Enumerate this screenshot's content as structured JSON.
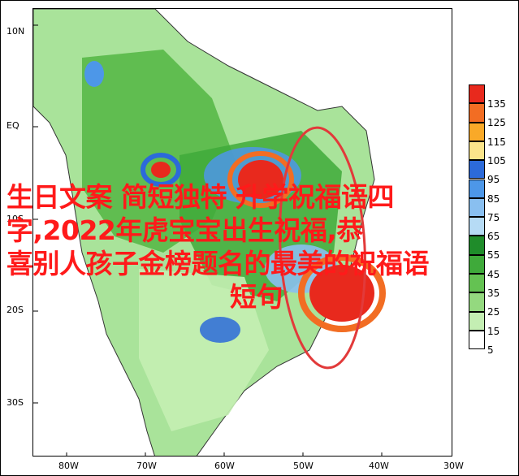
{
  "overlay_title_lines": [
    "生日文案 简短独特 升学祝福语四",
    "字,2022年虎宝宝出生祝福,恭",
    "喜别人孩子金榜题名的最美的祝福语",
    "短句"
  ],
  "lat_labels": [
    "10N",
    "EQ",
    "10S",
    "20S",
    "30S"
  ],
  "lon_labels": [
    "80W",
    "70W",
    "60W",
    "50W",
    "40W",
    "30W"
  ],
  "legend": {
    "levels": [
      "135",
      "125",
      "115",
      "105",
      "95",
      "85",
      "75",
      "65",
      "55",
      "45",
      "35",
      "25",
      "15",
      "5"
    ],
    "colors": [
      "#e8291d",
      "#f26d23",
      "#f9a928",
      "#fbe48a",
      "#2c6ad9",
      "#4d97e8",
      "#89bff0",
      "#b6dbf5",
      "#1f8c2a",
      "#3faa3a",
      "#64c252",
      "#94d97f",
      "#c4eeb3",
      "#ffffff"
    ]
  },
  "colors": {
    "highlight_ring": "#e23a3a",
    "overlay_text": "#ff1a1a"
  }
}
